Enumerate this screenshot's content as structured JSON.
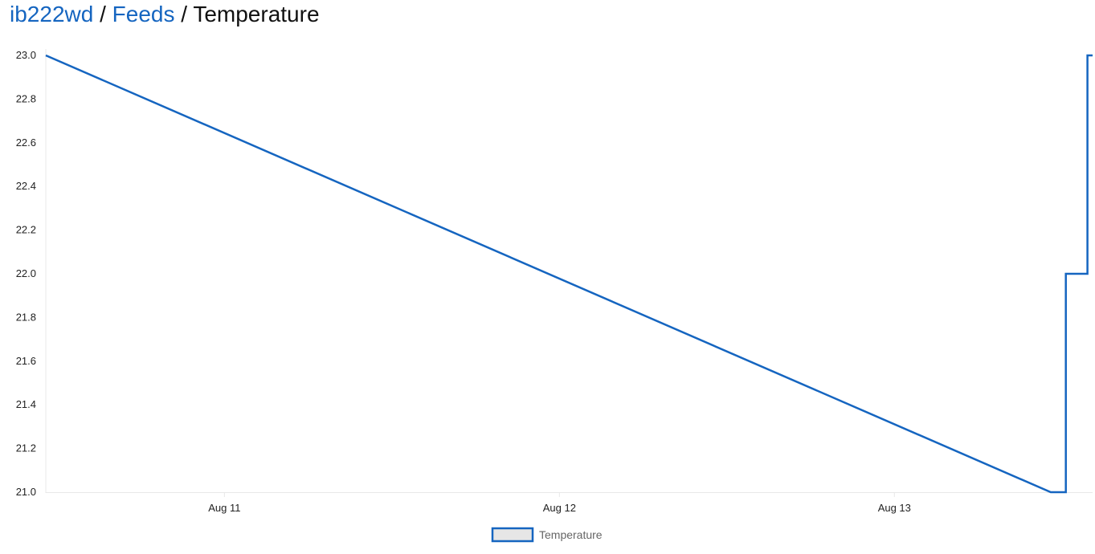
{
  "breadcrumb": {
    "user": "ib222wd",
    "separator": "/",
    "feeds": "Feeds",
    "current": "Temperature"
  },
  "colors": {
    "link": "#1565c0",
    "series_line": "#1565c0",
    "legend_fill": "#e6e6e6",
    "grid_axis": "#e8e8e8"
  },
  "chart_data": {
    "type": "line",
    "interpolation": "step-after",
    "title": "",
    "xlabel": "",
    "ylabel": "",
    "xlim": [
      "Aug 10 11:12",
      "Aug 13 14:12"
    ],
    "ylim": [
      21.0,
      23.0
    ],
    "y_ticks": [
      "21.0",
      "21.2",
      "21.4",
      "21.6",
      "21.8",
      "22.0",
      "22.2",
      "22.4",
      "22.6",
      "22.8",
      "23.0"
    ],
    "x_ticks": [
      {
        "label": "Aug 11",
        "at": "Aug 11 00:00"
      },
      {
        "label": "Aug 12",
        "at": "Aug 12 00:00"
      },
      {
        "label": "Aug 13",
        "at": "Aug 13 00:00"
      }
    ],
    "grid": false,
    "legend_position": "bottom-center",
    "series": [
      {
        "name": "Temperature",
        "x": [
          "Aug 10 11:12",
          "Aug 13 11:12",
          "Aug 13 12:17",
          "Aug 13 13:50",
          "Aug 13 14:12"
        ],
        "values": [
          23.0,
          21.0,
          22.0,
          23.0,
          23.0
        ]
      }
    ]
  }
}
